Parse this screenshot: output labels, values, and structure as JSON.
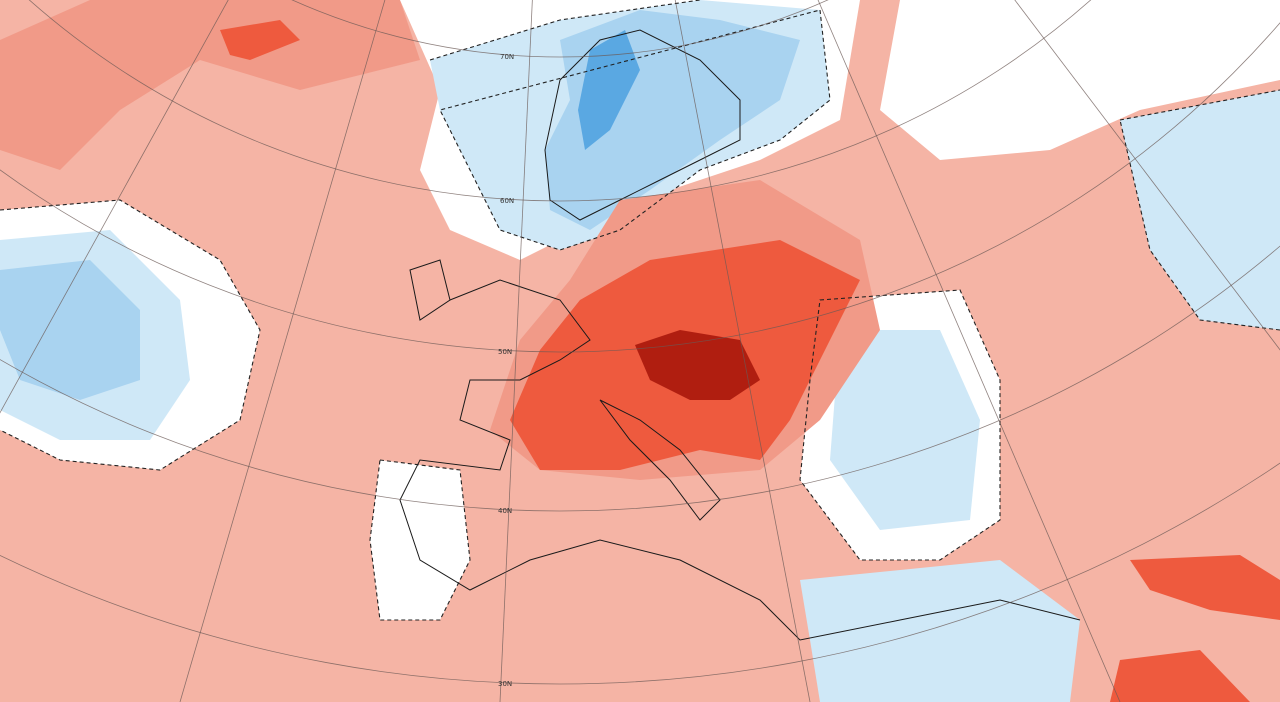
{
  "map": {
    "latitude_labels": [
      "70N",
      "60N",
      "50N",
      "40N",
      "30N"
    ]
  }
}
